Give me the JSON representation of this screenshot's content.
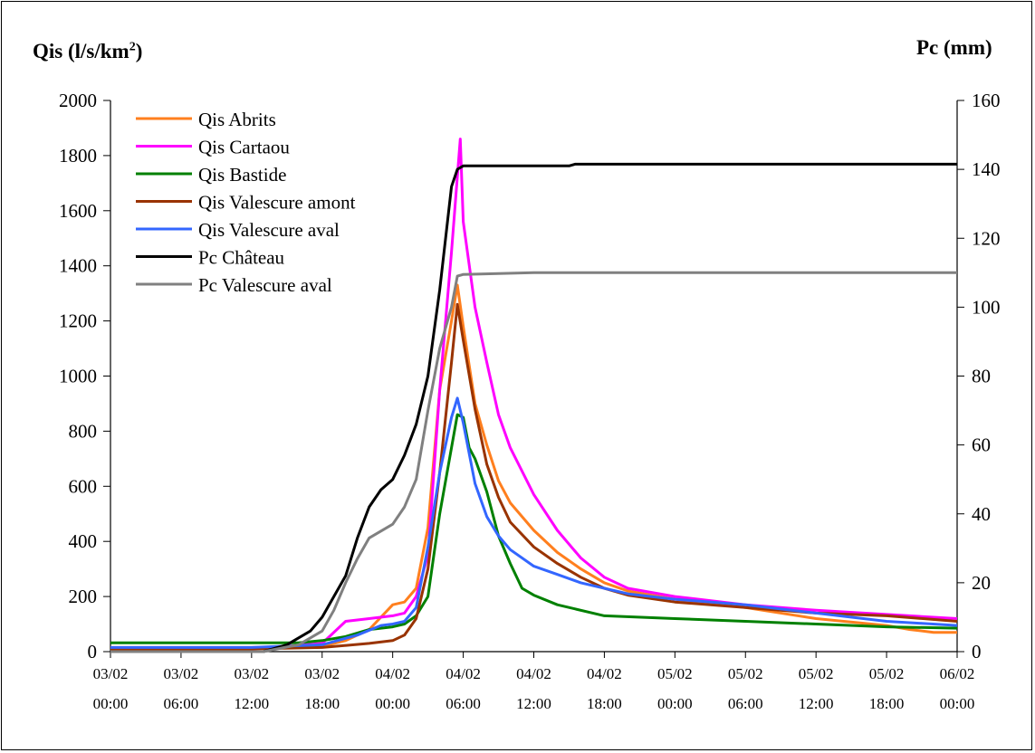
{
  "left_axis_label": {
    "pre": "Qis  (l/s/km",
    "sup": "2",
    "post": ")"
  },
  "right_axis_label": "Pc (mm)",
  "chart_data": {
    "type": "line",
    "x_unit": "time (dd/mm hh:mm)",
    "xlim": [
      "03/02 00:00",
      "06/02 00:00"
    ],
    "x_ticks": [
      {
        "date": "03/02",
        "time": "00:00"
      },
      {
        "date": "03/02",
        "time": "06:00"
      },
      {
        "date": "03/02",
        "time": "12:00"
      },
      {
        "date": "03/02",
        "time": "18:00"
      },
      {
        "date": "04/02",
        "time": "00:00"
      },
      {
        "date": "04/02",
        "time": "06:00"
      },
      {
        "date": "04/02",
        "time": "12:00"
      },
      {
        "date": "04/02",
        "time": "18:00"
      },
      {
        "date": "05/02",
        "time": "00:00"
      },
      {
        "date": "05/02",
        "time": "06:00"
      },
      {
        "date": "05/02",
        "time": "12:00"
      },
      {
        "date": "05/02",
        "time": "18:00"
      },
      {
        "date": "06/02",
        "time": "00:00"
      }
    ],
    "y_left": {
      "label": "Qis (l/s/km2)",
      "ylim": [
        0,
        2000
      ],
      "ticks": [
        "0",
        "200",
        "400",
        "600",
        "800",
        "1000",
        "1200",
        "1400",
        "1600",
        "1800",
        "2000"
      ]
    },
    "y_right": {
      "label": "Pc (mm)",
      "ylim": [
        0,
        160
      ],
      "ticks": [
        "0",
        "20",
        "40",
        "60",
        "80",
        "100",
        "120",
        "140",
        "160"
      ]
    },
    "grid": false,
    "legend_position": "top-left",
    "series": [
      {
        "name": "Qis Abrits",
        "axis": "left",
        "color": "#FF7F1E",
        "points": [
          [
            "03/02 00:00",
            15
          ],
          [
            "03/02 12:00",
            15
          ],
          [
            "03/02 18:00",
            20
          ],
          [
            "03/02 20:00",
            40
          ],
          [
            "03/02 22:00",
            80
          ],
          [
            "04/02 00:00",
            170
          ],
          [
            "04/02 01:00",
            180
          ],
          [
            "04/02 02:00",
            230
          ],
          [
            "04/02 03:00",
            450
          ],
          [
            "04/02 04:00",
            950
          ],
          [
            "04/02 05:00",
            1200
          ],
          [
            "04/02 05:30",
            1330
          ],
          [
            "04/02 06:00",
            1180
          ],
          [
            "04/02 07:00",
            900
          ],
          [
            "04/02 08:00",
            750
          ],
          [
            "04/02 09:00",
            620
          ],
          [
            "04/02 10:00",
            540
          ],
          [
            "04/02 12:00",
            440
          ],
          [
            "04/02 14:00",
            360
          ],
          [
            "04/02 16:00",
            300
          ],
          [
            "04/02 18:00",
            250
          ],
          [
            "04/02 20:00",
            220
          ],
          [
            "05/02 00:00",
            190
          ],
          [
            "05/02 06:00",
            160
          ],
          [
            "05/02 12:00",
            120
          ],
          [
            "05/02 18:00",
            95
          ],
          [
            "05/02 20:00",
            80
          ],
          [
            "05/02 22:00",
            70
          ],
          [
            "06/02 00:00",
            70
          ]
        ]
      },
      {
        "name": "Qis Cartaou",
        "axis": "left",
        "color": "#FF00FF",
        "points": [
          [
            "03/02 00:00",
            10
          ],
          [
            "03/02 12:00",
            10
          ],
          [
            "03/02 18:00",
            30
          ],
          [
            "03/02 20:00",
            110
          ],
          [
            "03/02 22:00",
            120
          ],
          [
            "04/02 00:00",
            130
          ],
          [
            "04/02 01:00",
            140
          ],
          [
            "04/02 02:00",
            200
          ],
          [
            "04/02 03:00",
            350
          ],
          [
            "04/02 04:00",
            950
          ],
          [
            "04/02 05:00",
            1450
          ],
          [
            "04/02 05:45",
            1860
          ],
          [
            "04/02 06:00",
            1560
          ],
          [
            "04/02 07:00",
            1250
          ],
          [
            "04/02 08:00",
            1050
          ],
          [
            "04/02 09:00",
            860
          ],
          [
            "04/02 10:00",
            740
          ],
          [
            "04/02 12:00",
            570
          ],
          [
            "04/02 14:00",
            440
          ],
          [
            "04/02 16:00",
            340
          ],
          [
            "04/02 18:00",
            270
          ],
          [
            "04/02 20:00",
            230
          ],
          [
            "05/02 00:00",
            200
          ],
          [
            "05/02 06:00",
            170
          ],
          [
            "05/02 12:00",
            150
          ],
          [
            "05/02 18:00",
            135
          ],
          [
            "06/02 00:00",
            120
          ]
        ]
      },
      {
        "name": "Qis Bastide",
        "axis": "left",
        "color": "#008000",
        "points": [
          [
            "03/02 00:00",
            32
          ],
          [
            "03/02 12:00",
            32
          ],
          [
            "03/02 16:00",
            32
          ],
          [
            "03/02 18:00",
            40
          ],
          [
            "03/02 20:00",
            55
          ],
          [
            "03/02 22:00",
            80
          ],
          [
            "04/02 00:00",
            90
          ],
          [
            "04/02 01:00",
            100
          ],
          [
            "04/02 02:00",
            130
          ],
          [
            "04/02 03:00",
            200
          ],
          [
            "04/02 04:00",
            500
          ],
          [
            "04/02 05:00",
            740
          ],
          [
            "04/02 05:30",
            860
          ],
          [
            "04/02 06:00",
            850
          ],
          [
            "04/02 06:30",
            740
          ],
          [
            "04/02 07:00",
            700
          ],
          [
            "04/02 08:00",
            580
          ],
          [
            "04/02 09:00",
            420
          ],
          [
            "04/02 10:00",
            320
          ],
          [
            "04/02 11:00",
            230
          ],
          [
            "04/02 12:00",
            205
          ],
          [
            "04/02 14:00",
            170
          ],
          [
            "04/02 18:00",
            130
          ],
          [
            "05/02 00:00",
            120
          ],
          [
            "05/02 06:00",
            110
          ],
          [
            "05/02 12:00",
            100
          ],
          [
            "05/02 18:00",
            90
          ],
          [
            "06/02 00:00",
            85
          ]
        ]
      },
      {
        "name": "Qis Valescure amont",
        "axis": "left",
        "color": "#993300",
        "points": [
          [
            "03/02 00:00",
            10
          ],
          [
            "03/02 12:00",
            10
          ],
          [
            "03/02 18:00",
            15
          ],
          [
            "03/02 22:00",
            30
          ],
          [
            "04/02 00:00",
            40
          ],
          [
            "04/02 01:00",
            60
          ],
          [
            "04/02 02:00",
            120
          ],
          [
            "04/02 03:00",
            300
          ],
          [
            "04/02 04:00",
            650
          ],
          [
            "04/02 05:00",
            1050
          ],
          [
            "04/02 05:30",
            1260
          ],
          [
            "04/02 06:00",
            1130
          ],
          [
            "04/02 07:00",
            880
          ],
          [
            "04/02 08:00",
            680
          ],
          [
            "04/02 09:00",
            560
          ],
          [
            "04/02 10:00",
            470
          ],
          [
            "04/02 12:00",
            380
          ],
          [
            "04/02 14:00",
            320
          ],
          [
            "04/02 16:00",
            270
          ],
          [
            "04/02 18:00",
            230
          ],
          [
            "04/02 20:00",
            205
          ],
          [
            "05/02 00:00",
            180
          ],
          [
            "05/02 06:00",
            160
          ],
          [
            "05/02 12:00",
            140
          ],
          [
            "05/02 18:00",
            130
          ],
          [
            "06/02 00:00",
            110
          ]
        ]
      },
      {
        "name": "Qis Valescure aval",
        "axis": "left",
        "color": "#3366FF",
        "points": [
          [
            "03/02 00:00",
            15
          ],
          [
            "03/02 12:00",
            15
          ],
          [
            "03/02 18:00",
            25
          ],
          [
            "03/02 21:00",
            60
          ],
          [
            "03/02 23:00",
            95
          ],
          [
            "04/02 00:00",
            100
          ],
          [
            "04/02 01:00",
            110
          ],
          [
            "04/02 02:00",
            160
          ],
          [
            "04/02 03:00",
            380
          ],
          [
            "04/02 04:00",
            650
          ],
          [
            "04/02 05:00",
            850
          ],
          [
            "04/02 05:30",
            920
          ],
          [
            "04/02 06:00",
            830
          ],
          [
            "04/02 07:00",
            610
          ],
          [
            "04/02 08:00",
            490
          ],
          [
            "04/02 09:00",
            420
          ],
          [
            "04/02 10:00",
            370
          ],
          [
            "04/02 12:00",
            310
          ],
          [
            "04/02 14:00",
            280
          ],
          [
            "04/02 16:00",
            250
          ],
          [
            "04/02 18:00",
            230
          ],
          [
            "04/02 20:00",
            210
          ],
          [
            "05/02 00:00",
            190
          ],
          [
            "05/02 06:00",
            170
          ],
          [
            "05/02 12:00",
            140
          ],
          [
            "05/02 18:00",
            110
          ],
          [
            "06/02 00:00",
            95
          ]
        ]
      },
      {
        "name": "Pc Château",
        "axis": "right",
        "color": "#000000",
        "points": [
          [
            "03/02 00:00",
            0
          ],
          [
            "03/02 13:00",
            0
          ],
          [
            "03/02 15:00",
            2
          ],
          [
            "03/02 17:00",
            6
          ],
          [
            "03/02 18:00",
            10
          ],
          [
            "03/02 19:00",
            16
          ],
          [
            "03/02 20:00",
            22
          ],
          [
            "03/02 21:00",
            33
          ],
          [
            "03/02 22:00",
            42
          ],
          [
            "03/02 23:00",
            47
          ],
          [
            "04/02 00:00",
            50
          ],
          [
            "04/02 01:00",
            57
          ],
          [
            "04/02 02:00",
            66
          ],
          [
            "04/02 03:00",
            80
          ],
          [
            "04/02 04:00",
            105
          ],
          [
            "04/02 05:00",
            135
          ],
          [
            "04/02 05:30",
            140
          ],
          [
            "04/02 06:00",
            141
          ],
          [
            "04/02 12:00",
            141
          ],
          [
            "04/02 15:00",
            141
          ],
          [
            "04/02 15:30",
            141.5
          ],
          [
            "06/02 00:00",
            141.5
          ]
        ]
      },
      {
        "name": "Pc Valescure aval",
        "axis": "right",
        "color": "#808080",
        "points": [
          [
            "03/02 00:00",
            0
          ],
          [
            "03/02 13:00",
            0
          ],
          [
            "03/02 16:00",
            2
          ],
          [
            "03/02 18:00",
            6
          ],
          [
            "03/02 19:00",
            12
          ],
          [
            "03/02 20:00",
            20
          ],
          [
            "03/02 21:00",
            27
          ],
          [
            "03/02 22:00",
            33
          ],
          [
            "04/02 00:00",
            37
          ],
          [
            "04/02 01:00",
            42
          ],
          [
            "04/02 02:00",
            50
          ],
          [
            "04/02 03:00",
            70
          ],
          [
            "04/02 04:00",
            88
          ],
          [
            "04/02 05:00",
            100
          ],
          [
            "04/02 05:30",
            109
          ],
          [
            "04/02 06:00",
            109.5
          ],
          [
            "04/02 12:00",
            110
          ],
          [
            "06/02 00:00",
            110
          ]
        ]
      }
    ]
  }
}
